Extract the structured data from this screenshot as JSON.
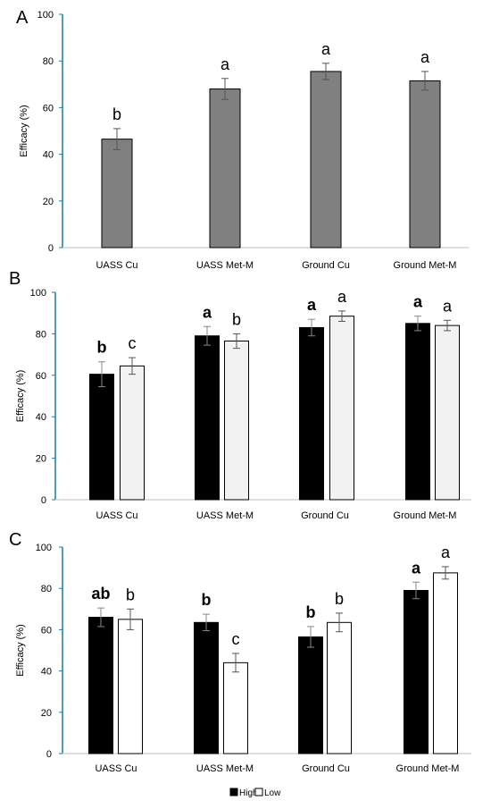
{
  "colors": {
    "axis_line": "#1a7fa0",
    "axis_gray": "#bfbfbf",
    "bar_single": "#808080",
    "bar_high": "#000000",
    "bar_low_b": "#f2f2f2",
    "bar_low_c": "#ffffff",
    "bar_edge": "#000000",
    "error_bar": "#555555",
    "text": "#000000"
  },
  "chart_data": [
    {
      "panel_label": "A",
      "type": "bar",
      "ylabel": "Efficacy (%)",
      "ylim": [
        0,
        100
      ],
      "yticks": [
        0,
        20,
        40,
        60,
        80,
        100
      ],
      "categories": [
        "UASS Cu",
        "UASS Met-M",
        "Ground Cu",
        "Ground Met-M"
      ],
      "series": [
        {
          "values": [
            46.5,
            68,
            75.5,
            71.5
          ],
          "errors": [
            4.5,
            4.5,
            3.5,
            4
          ],
          "letters": [
            "b",
            "a",
            "a",
            "a"
          ],
          "letters_bold": false
        }
      ]
    },
    {
      "panel_label": "B",
      "type": "bar",
      "ylabel": "Efficacy (%)",
      "ylim": [
        0,
        100
      ],
      "yticks": [
        0,
        20,
        40,
        60,
        80,
        100
      ],
      "categories": [
        "UASS Cu",
        "UASS Met-M",
        "Ground Cu",
        "Ground Met-M"
      ],
      "series": [
        {
          "name": "High",
          "values": [
            60.5,
            79,
            83,
            85
          ],
          "errors": [
            6,
            4.5,
            4,
            3.5
          ],
          "letters": [
            "b",
            "a",
            "a",
            "a"
          ],
          "letters_bold": true
        },
        {
          "name": "Low",
          "values": [
            64.5,
            76.5,
            88.5,
            84
          ],
          "errors": [
            4,
            3.5,
            2.5,
            2.5
          ],
          "letters": [
            "c",
            "b",
            "a",
            "a"
          ],
          "letters_bold": false
        }
      ]
    },
    {
      "panel_label": "C",
      "type": "bar",
      "ylabel": "Efficacy (%)",
      "ylim": [
        0,
        100
      ],
      "yticks": [
        0,
        20,
        40,
        60,
        80,
        100
      ],
      "categories": [
        "UASS Cu",
        "UASS Met-M",
        "Ground Cu",
        "Ground Met-M"
      ],
      "series": [
        {
          "name": "High",
          "values": [
            66,
            63.5,
            56.5,
            79
          ],
          "errors": [
            4.5,
            4,
            5,
            4
          ],
          "letters": [
            "ab",
            "b",
            "b",
            "a"
          ],
          "letters_bold": true
        },
        {
          "name": "Low",
          "values": [
            65,
            44,
            63.5,
            87.5
          ],
          "errors": [
            5,
            4.5,
            4.5,
            3
          ],
          "letters": [
            "b",
            "c",
            "b",
            "a"
          ],
          "letters_bold": false
        }
      ],
      "legend": {
        "placement": "bottom-center",
        "entries": [
          "High",
          "Low"
        ]
      }
    }
  ]
}
